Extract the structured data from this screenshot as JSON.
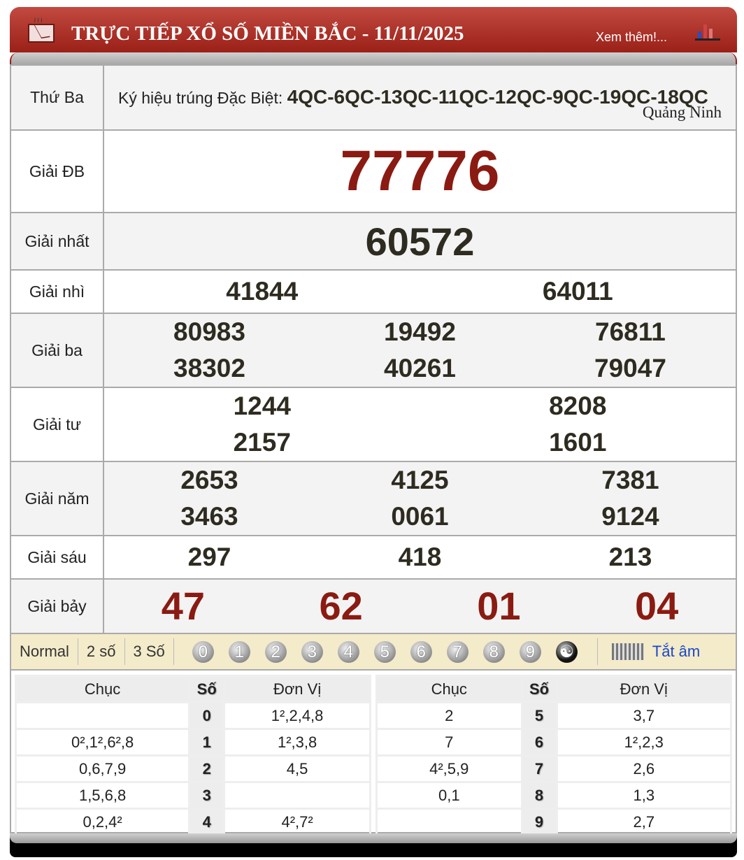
{
  "header": {
    "title": "TRỰC TIẾP XỔ SỐ MIỀN BẮC - 11/11/2025",
    "more_link": "Xem thêm!...",
    "accent": "#9a2018"
  },
  "info": {
    "day": "Thứ Ba",
    "kyhieu_label": "Ký hiệu trúng Đặc Biệt:",
    "kyhieu_value": "4QC-6QC-13QC-11QC-12QC-9QC-19QC-18QC",
    "province": "Quảng Ninh"
  },
  "prizes": [
    {
      "label": "Giải ĐB",
      "numbers": [
        "77776"
      ]
    },
    {
      "label": "Giải nhất",
      "numbers": [
        "60572"
      ]
    },
    {
      "label": "Giải nhì",
      "numbers": [
        "41844",
        "64011"
      ]
    },
    {
      "label": "Giải ba",
      "numbers": [
        "80983",
        "19492",
        "76811",
        "38302",
        "40261",
        "79047"
      ]
    },
    {
      "label": "Giải tư",
      "numbers": [
        "1244",
        "8208",
        "2157",
        "1601"
      ]
    },
    {
      "label": "Giải năm",
      "numbers": [
        "2653",
        "4125",
        "7381",
        "3463",
        "0061",
        "9124"
      ]
    },
    {
      "label": "Giải sáu",
      "numbers": [
        "297",
        "418",
        "213"
      ]
    },
    {
      "label": "Giải bảy",
      "numbers": [
        "47",
        "62",
        "01",
        "04"
      ]
    }
  ],
  "toolbar": {
    "modes": [
      "Normal",
      "2 số",
      "3 Số"
    ],
    "digits": [
      "0",
      "1",
      "2",
      "3",
      "4",
      "5",
      "6",
      "7",
      "8",
      "9"
    ],
    "mute": "Tắt âm"
  },
  "loto": {
    "headers": [
      "Chục",
      "Số",
      "Đơn Vị"
    ],
    "left": [
      [
        "",
        "0",
        "1²,2,4,8"
      ],
      [
        "0²,1²,6²,8",
        "1",
        "1²,3,8"
      ],
      [
        "0,6,7,9",
        "2",
        "4,5"
      ],
      [
        "1,5,6,8",
        "3",
        ""
      ],
      [
        "0,2,4²",
        "4",
        "4²,7²"
      ]
    ],
    "right": [
      [
        "2",
        "5",
        "3,7"
      ],
      [
        "7",
        "6",
        "1²,2,3"
      ],
      [
        "4²,5,9",
        "7",
        "2,6"
      ],
      [
        "0,1",
        "8",
        "1,3"
      ],
      [
        "",
        "9",
        "2,7"
      ]
    ]
  }
}
